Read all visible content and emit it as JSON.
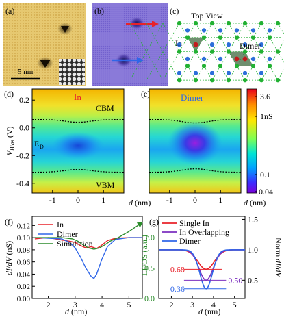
{
  "panel_labels": {
    "a": "(a)",
    "b": "(b)",
    "c": "(c)",
    "d": "(d)",
    "e": "(e)",
    "f": "(f)",
    "g": "(g)"
  },
  "panel_a": {
    "scale_bar": "5 nm"
  },
  "panel_c": {
    "title": "Top View",
    "label_in": "In",
    "label_dimer": "Dimer"
  },
  "panel_d": {
    "title": "In",
    "cbm": "CBM",
    "vbm": "VBM",
    "ed": "E",
    "ed_sub": "D"
  },
  "panel_e": {
    "title": "Dimer"
  },
  "colorbar": {
    "ticks": [
      "3.6",
      "1nS",
      "0.1",
      "0.04"
    ],
    "colors": [
      "#e8001c",
      "#ff8c00",
      "#ffe600",
      "#7dff55",
      "#00e5d4",
      "#00a2ff",
      "#3c2cff",
      "#7a00d8"
    ]
  },
  "colors": {
    "red": "#e8222a",
    "blue": "#2f66e8",
    "green": "#2c8c2c",
    "purple": "#7b2fbf",
    "tile_light": "#e6c870",
    "tile_dark": "#c59a37",
    "stm_b": "#8a7ad9",
    "atom_green": "#22b133",
    "atom_blue": "#2c6fd9"
  },
  "chart_data": [
    {
      "panel": "d",
      "type": "heatmap",
      "xlabel": "d (nm)",
      "ylabel": "V_Bias (V)",
      "x_ticks": [
        "-1",
        "0",
        "1"
      ],
      "y_ticks": [
        "0.2",
        "0.0",
        "-0.2",
        "-0.4"
      ],
      "xlim": [
        -1.8,
        1.8
      ],
      "ylim": [
        -0.47,
        0.28
      ],
      "cbm_v": 0.06,
      "vbm_v": -0.32,
      "ed_v": -0.19
    },
    {
      "panel": "e",
      "type": "heatmap",
      "xlabel": "d (nm)",
      "x_ticks": [
        "-1",
        "0",
        "1"
      ],
      "xlim": [
        -1.8,
        1.8
      ],
      "ylim": [
        -0.47,
        0.28
      ]
    },
    {
      "panel": "f",
      "type": "line",
      "xlabel": "d (nm)",
      "ylabel": "dI/dV (nS)",
      "ylabel2": "LDOS (a.u.)",
      "xlim": [
        1.4,
        5.5
      ],
      "ylim": [
        0.0,
        0.135
      ],
      "ylim2": [
        0.0,
        1.35
      ],
      "x_ticks": [
        "2",
        "3",
        "4",
        "5"
      ],
      "y_ticks": [
        "0.00",
        "0.02",
        "0.04",
        "0.06",
        "0.08",
        "0.10",
        "0.12"
      ],
      "y2_ticks": [
        "0.0",
        "0.5",
        "1.0"
      ],
      "series": [
        {
          "name": "In",
          "x": [
            1.5,
            2.0,
            2.5,
            2.8,
            3.0,
            3.2,
            3.4,
            3.6,
            3.8,
            4.0,
            4.2,
            4.5,
            5.0,
            5.5
          ],
          "y": [
            0.098,
            0.1,
            0.096,
            0.094,
            0.092,
            0.087,
            0.083,
            0.085,
            0.082,
            0.088,
            0.095,
            0.099,
            0.1,
            0.1
          ]
        },
        {
          "name": "Dimer",
          "x": [
            1.5,
            2.0,
            2.5,
            2.8,
            3.0,
            3.2,
            3.4,
            3.6,
            3.7,
            3.8,
            4.0,
            4.2,
            4.5,
            5.0,
            5.5
          ],
          "y": [
            0.1,
            0.099,
            0.098,
            0.092,
            0.083,
            0.068,
            0.05,
            0.036,
            0.033,
            0.04,
            0.065,
            0.085,
            0.097,
            0.1,
            0.1
          ]
        },
        {
          "name": "Simulation",
          "x": [
            1.5,
            2.5,
            2.9,
            3.1,
            3.3,
            3.5,
            3.7,
            3.9,
            4.1,
            4.3,
            4.6,
            5.0,
            5.5
          ],
          "y": [
            0.1,
            0.1,
            0.098,
            0.094,
            0.088,
            0.083,
            0.081,
            0.083,
            0.088,
            0.094,
            0.1,
            0.11,
            0.125
          ]
        }
      ]
    },
    {
      "panel": "g",
      "type": "line",
      "xlabel": "d (nm)",
      "ylabel2": "Norm dI/dV",
      "xlim": [
        1.4,
        5.5
      ],
      "ylim": [
        0.2,
        1.55
      ],
      "x_ticks": [
        "2",
        "3",
        "4",
        "5"
      ],
      "y2_ticks": [
        "0.5",
        "1.0",
        "1.5"
      ],
      "annotations": [
        "0.68",
        "0.50",
        "0.36"
      ],
      "series": [
        {
          "name": "Single In",
          "center": 3.65,
          "min": 0.68
        },
        {
          "name": "In Overlapping",
          "center": 3.65,
          "min": 0.5
        },
        {
          "name": "Dimer",
          "center": 3.65,
          "min": 0.36
        }
      ]
    }
  ]
}
